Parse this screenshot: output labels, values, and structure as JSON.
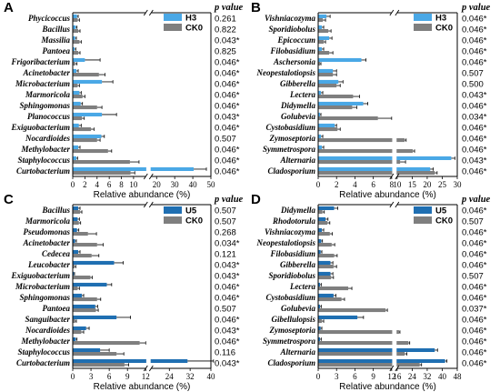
{
  "xlabel": "Relative abundance (%)",
  "pvalue_header": "p value",
  "chart_data": [
    {
      "panel": "A",
      "type": "bar",
      "orientation": "horizontal",
      "series": [
        {
          "name": "H3",
          "color": "#4aa8e6"
        },
        {
          "name": "CK0",
          "color": "#7f7f7f"
        }
      ],
      "break": [
        12,
        17
      ],
      "xticks": [
        0,
        2,
        4,
        6,
        8,
        10,
        20,
        30,
        40,
        50
      ],
      "xlim": [
        0,
        50
      ],
      "categories": [
        {
          "name": "Phycicoccus",
          "p": "0.261",
          "v": [
            0.7,
            0.8
          ],
          "e": [
            0.2,
            0.3
          ]
        },
        {
          "name": "Bacillus",
          "p": "0.822",
          "v": [
            0.5,
            0.9
          ],
          "e": [
            0.2,
            0.3
          ]
        },
        {
          "name": "Massilia",
          "p": "0.043*",
          "v": [
            0.4,
            1.1
          ],
          "e": [
            0.2,
            0.3
          ]
        },
        {
          "name": "Pantoea",
          "p": "0.825",
          "v": [
            0.3,
            0.9
          ],
          "e": [
            0.2,
            0.3
          ]
        },
        {
          "name": "Frigoribacterium",
          "p": "0.046*",
          "v": [
            2.0,
            0.4
          ],
          "e": [
            2.5,
            0.3
          ]
        },
        {
          "name": "Acinetobacter",
          "p": "0.046*",
          "v": [
            0.6,
            4.3
          ],
          "e": [
            0.3,
            1.0
          ]
        },
        {
          "name": "Microbacterium",
          "p": "0.046*",
          "v": [
            4.8,
            0.8
          ],
          "e": [
            1.8,
            0.3
          ]
        },
        {
          "name": "Marmoricola",
          "p": "0.046*",
          "v": [
            1.1,
            1.6
          ],
          "e": [
            0.3,
            0.4
          ]
        },
        {
          "name": "Sphingomonas",
          "p": "0.046*",
          "v": [
            1.3,
            4.0
          ],
          "e": [
            0.3,
            0.8
          ]
        },
        {
          "name": "Planococcus",
          "p": "0.043*",
          "v": [
            4.8,
            1.5
          ],
          "e": [
            2.4,
            0.4
          ]
        },
        {
          "name": "Exiguobacterium",
          "p": "0.046*",
          "v": [
            1.0,
            3.0
          ],
          "e": [
            0.4,
            0.5
          ]
        },
        {
          "name": "Nocardioides",
          "p": "0.507",
          "v": [
            4.7,
            4.0
          ],
          "e": [
            0.5,
            0.5
          ]
        },
        {
          "name": "Methylobacter",
          "p": "0.046*",
          "v": [
            0.9,
            5.8
          ],
          "e": [
            0.3,
            0.6
          ]
        },
        {
          "name": "Staphylococcus",
          "p": "0.046*",
          "v": [
            0.6,
            9.4
          ],
          "e": [
            0.2,
            1.5
          ]
        },
        {
          "name": "Curtobacterium",
          "p": "0.046*",
          "v": [
            40.5,
            9.5
          ],
          "e": [
            7.0,
            0.7
          ]
        }
      ]
    },
    {
      "panel": "B",
      "type": "bar",
      "orientation": "horizontal",
      "series": [
        {
          "name": "H3",
          "color": "#4aa8e6"
        },
        {
          "name": "CK0",
          "color": "#7f7f7f"
        }
      ],
      "break": [
        8,
        10
      ],
      "xticks": [
        0,
        2,
        4,
        6,
        8,
        10,
        15,
        20,
        25,
        30
      ],
      "xlim": [
        0,
        30
      ],
      "categories": [
        {
          "name": "Vishniacozyma",
          "p": "0.046*",
          "v": [
            0.9,
            0.5
          ],
          "e": [
            0.4,
            0.3
          ]
        },
        {
          "name": "Sporidiobolus",
          "p": "0.046*",
          "v": [
            0.4,
            1.1
          ],
          "e": [
            0.2,
            0.3
          ]
        },
        {
          "name": "Epicoccum",
          "p": "0.046*",
          "v": [
            1.2,
            0.6
          ],
          "e": [
            0.3,
            0.2
          ]
        },
        {
          "name": "Filobasidium",
          "p": "0.046*",
          "v": [
            0.4,
            1.2
          ],
          "e": [
            0.2,
            0.4
          ]
        },
        {
          "name": "Aschersonia",
          "p": "0.046*",
          "v": [
            4.7,
            0.2
          ],
          "e": [
            0.5,
            0.1
          ]
        },
        {
          "name": "Neopestalotiopsis",
          "p": "0.507",
          "v": [
            1.6,
            1.6
          ],
          "e": [
            0.4,
            0.4
          ]
        },
        {
          "name": "Gibberella",
          "p": "0.500",
          "v": [
            2.2,
            2.0
          ],
          "e": [
            0.5,
            0.4
          ]
        },
        {
          "name": "Lectera",
          "p": "0.043*",
          "v": [
            0.3,
            3.8
          ],
          "e": [
            0.2,
            0.7
          ]
        },
        {
          "name": "Didymella",
          "p": "0.046*",
          "v": [
            4.9,
            3.7
          ],
          "e": [
            0.5,
            0.5
          ]
        },
        {
          "name": "Golubevia",
          "p": "0.034*",
          "v": [
            0.2,
            6.5
          ],
          "e": [
            0.1,
            2.0
          ]
        },
        {
          "name": "Cystobasidium",
          "p": "0.046*",
          "v": [
            1.8,
            2.1
          ],
          "e": [
            0.2,
            0.3
          ]
        },
        {
          "name": "Zymoseptoria",
          "p": "0.046*",
          "v": [
            0.3,
            12.5
          ],
          "e": [
            0.2,
            0.5
          ]
        },
        {
          "name": "Symmetrospora",
          "p": "0.046*",
          "v": [
            0.4,
            15.2
          ],
          "e": [
            0.2,
            0.6
          ]
        },
        {
          "name": "Alternaria",
          "p": "0.043*",
          "v": [
            28.0,
            11.0
          ],
          "e": [
            1.2,
            1.8
          ]
        },
        {
          "name": "Cladosporium",
          "p": "0.046*",
          "v": [
            21.0,
            22.5
          ],
          "e": [
            1.0,
            0.8
          ]
        }
      ]
    },
    {
      "panel": "C",
      "type": "bar",
      "orientation": "horizontal",
      "series": [
        {
          "name": "U5",
          "color": "#1f6fb2"
        },
        {
          "name": "CK0",
          "color": "#7f7f7f"
        }
      ],
      "break": [
        12,
        17
      ],
      "xticks": [
        0,
        3,
        6,
        9,
        12,
        24,
        32,
        40
      ],
      "xlim": [
        0,
        40
      ],
      "categories": [
        {
          "name": "Bacillus",
          "p": "0.507",
          "v": [
            0.9,
            1.2
          ],
          "e": [
            0.3,
            0.3
          ]
        },
        {
          "name": "Marmoricola",
          "p": "0.507",
          "v": [
            0.8,
            1.0
          ],
          "e": [
            0.3,
            0.3
          ]
        },
        {
          "name": "Pseudomonas",
          "p": "0.268",
          "v": [
            0.7,
            2.5
          ],
          "e": [
            0.3,
            1.4
          ]
        },
        {
          "name": "Acinetobacter",
          "p": "0.034*",
          "v": [
            0.4,
            4.0
          ],
          "e": [
            0.2,
            1.0
          ]
        },
        {
          "name": "Cedecea",
          "p": "0.121",
          "v": [
            0.9,
            3.1
          ],
          "e": [
            0.3,
            1.2
          ]
        },
        {
          "name": "Leucobacter",
          "p": "0.043*",
          "v": [
            6.8,
            0.3
          ],
          "e": [
            1.5,
            0.2
          ]
        },
        {
          "name": "Exiguobacterium",
          "p": "0.043*",
          "v": [
            0.2,
            2.9
          ],
          "e": [
            0.1,
            0.3
          ]
        },
        {
          "name": "Microbacterium",
          "p": "0.046*",
          "v": [
            5.6,
            0.8
          ],
          "e": [
            0.8,
            0.3
          ]
        },
        {
          "name": "Sphingomonas",
          "p": "0.046*",
          "v": [
            1.5,
            4.0
          ],
          "e": [
            0.3,
            0.6
          ]
        },
        {
          "name": "Pantoea",
          "p": "0.507",
          "v": [
            3.7,
            3.8
          ],
          "e": [
            0.4,
            0.4
          ]
        },
        {
          "name": "Sanguibacter",
          "p": "0.046*",
          "v": [
            7.2,
            0.4
          ],
          "e": [
            2.3,
            0.2
          ]
        },
        {
          "name": "Nocardioides",
          "p": "0.043*",
          "v": [
            2.2,
            1.4
          ],
          "e": [
            0.5,
            0.4
          ]
        },
        {
          "name": "Methylobacter",
          "p": "0.046*",
          "v": [
            0.5,
            11.0
          ],
          "e": [
            0.2,
            1.0
          ]
        },
        {
          "name": "Staphylococcus",
          "p": "0.116",
          "v": [
            4.5,
            7.2
          ],
          "e": [
            1.5,
            1.2
          ]
        },
        {
          "name": "Curtobacterium",
          "p": "0.043*",
          "v": [
            31.0,
            8.5
          ],
          "e": [
            10.0,
            0.7
          ]
        }
      ]
    },
    {
      "panel": "D",
      "type": "bar",
      "orientation": "horizontal",
      "series": [
        {
          "name": "U5",
          "color": "#1f6fb2"
        },
        {
          "name": "CK0",
          "color": "#7f7f7f"
        }
      ],
      "break": [
        12,
        16
      ],
      "xticks": [
        0,
        3,
        6,
        9,
        12,
        16,
        24,
        32,
        40,
        48
      ],
      "xlim": [
        0,
        48
      ],
      "categories": [
        {
          "name": "Didymella",
          "p": "0.046*",
          "v": [
            2.6,
            0.7
          ],
          "e": [
            0.6,
            0.3
          ]
        },
        {
          "name": "Rhodotorula",
          "p": "0.507",
          "v": [
            1.2,
            1.5
          ],
          "e": [
            0.4,
            0.4
          ]
        },
        {
          "name": "Vishniacozyma",
          "p": "0.046*",
          "v": [
            0.6,
            1.9
          ],
          "e": [
            0.3,
            0.4
          ]
        },
        {
          "name": "Neopestalotiopsis",
          "p": "0.046*",
          "v": [
            0.5,
            2.2
          ],
          "e": [
            0.2,
            0.5
          ]
        },
        {
          "name": "Filobasidium",
          "p": "0.046*",
          "v": [
            0.4,
            2.6
          ],
          "e": [
            0.2,
            0.5
          ]
        },
        {
          "name": "Gibberella",
          "p": "0.046*",
          "v": [
            2.0,
            2.5
          ],
          "e": [
            0.4,
            0.5
          ]
        },
        {
          "name": "Sporidiobolus",
          "p": "0.507",
          "v": [
            2.0,
            2.1
          ],
          "e": [
            0.4,
            0.4
          ]
        },
        {
          "name": "Lectera",
          "p": "0.046*",
          "v": [
            0.3,
            4.9
          ],
          "e": [
            0.2,
            0.6
          ]
        },
        {
          "name": "Cystobasidium",
          "p": "0.046*",
          "v": [
            2.5,
            3.8
          ],
          "e": [
            0.4,
            0.5
          ]
        },
        {
          "name": "Golubevia",
          "p": "0.037*",
          "v": [
            0.3,
            11.0
          ],
          "e": [
            0.2,
            0.3
          ]
        },
        {
          "name": "Gibellulopsis",
          "p": "0.046*",
          "v": [
            6.4,
            0.6
          ],
          "e": [
            1.0,
            0.3
          ]
        },
        {
          "name": "Zymoseptoria",
          "p": "0.046*",
          "v": [
            0.4,
            17.0
          ],
          "e": [
            0.2,
            0.5
          ]
        },
        {
          "name": "Symmetrospora",
          "p": "0.046*",
          "v": [
            0.3,
            22.0
          ],
          "e": [
            0.2,
            0.7
          ]
        },
        {
          "name": "Alternaria",
          "p": "0.046*",
          "v": [
            36.0,
            20.0
          ],
          "e": [
            1.5,
            1.2
          ]
        },
        {
          "name": "Cladosporium",
          "p": "0.046*",
          "v": [
            41.5,
            28.0
          ],
          "e": [
            1.0,
            1.0
          ]
        }
      ]
    }
  ]
}
